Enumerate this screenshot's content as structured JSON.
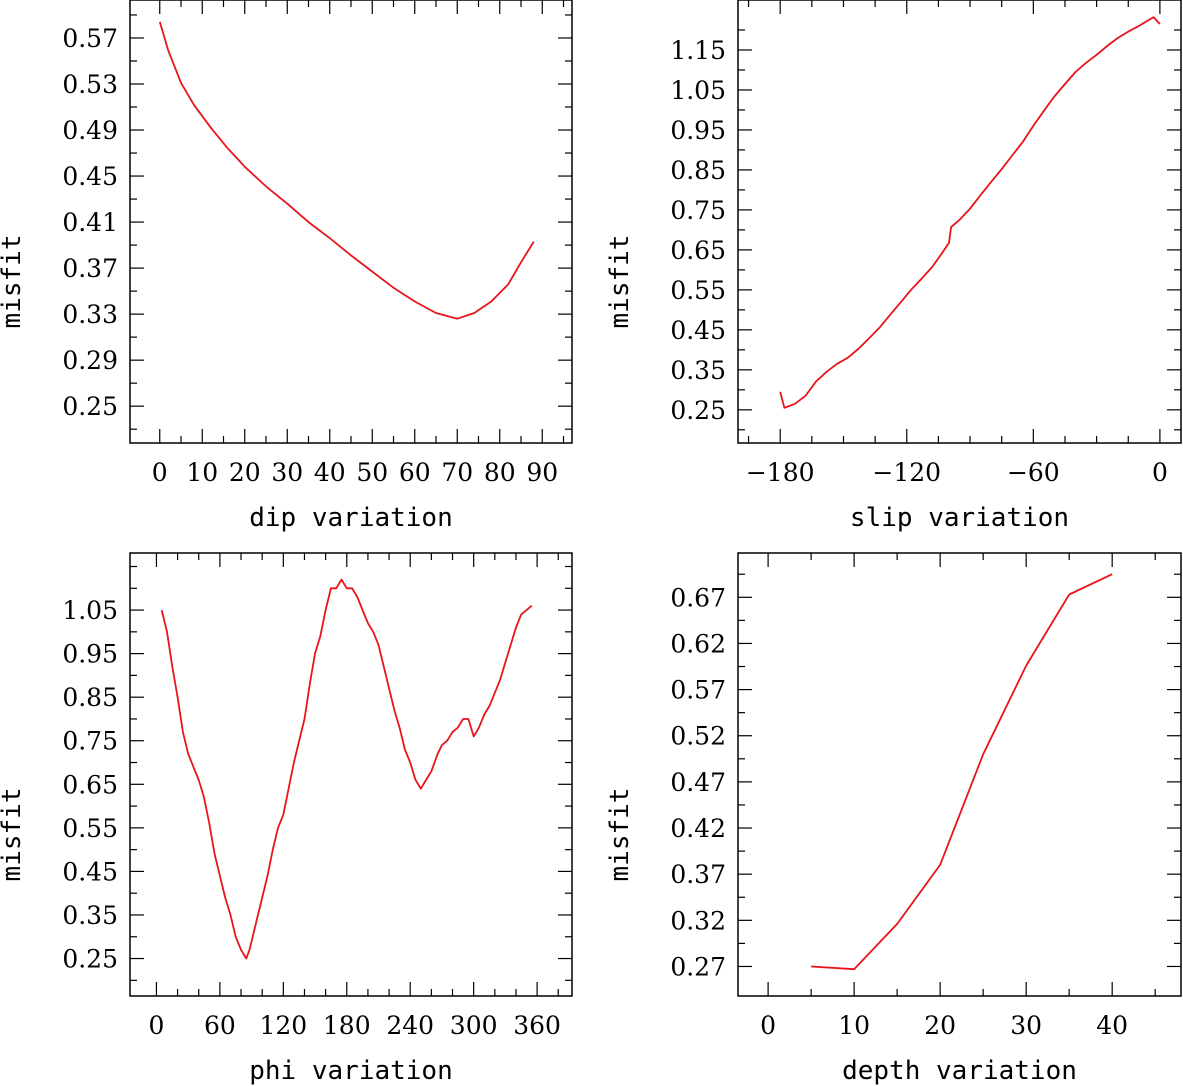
{
  "colors": {
    "curve": "#e8141a",
    "axes": "#000000",
    "background": "#ffffff"
  },
  "chart_data": [
    {
      "type": "line",
      "id": "dip",
      "xlabel": "dip    variation",
      "ylabel": "misfit",
      "xlim": [
        -7,
        97
      ],
      "ylim": [
        0.218,
        0.603
      ],
      "xticks": [
        0,
        10,
        20,
        30,
        40,
        50,
        60,
        70,
        80,
        90
      ],
      "xtick_labels": [
        "0",
        "10",
        "20",
        "30",
        "40",
        "50",
        "60",
        "70",
        "80",
        "90"
      ],
      "xminor": [
        5,
        15,
        25,
        35,
        45,
        55,
        65,
        75,
        85,
        95
      ],
      "yticks": [
        0.25,
        0.29,
        0.33,
        0.37,
        0.41,
        0.45,
        0.49,
        0.53,
        0.57
      ],
      "ytick_labels": [
        "0.25",
        "0.29",
        "0.33",
        "0.37",
        "0.41",
        "0.45",
        "0.49",
        "0.53",
        "0.57"
      ],
      "yminor": [
        0.23,
        0.27,
        0.31,
        0.35,
        0.39,
        0.43,
        0.47,
        0.51,
        0.55,
        0.59
      ],
      "x": [
        0,
        2,
        5,
        8,
        12,
        16,
        20,
        25,
        30,
        35,
        40,
        45,
        50,
        55,
        60,
        65,
        70,
        74,
        78,
        82,
        85,
        88
      ],
      "y": [
        0.584,
        0.559,
        0.531,
        0.512,
        0.492,
        0.474,
        0.458,
        0.441,
        0.426,
        0.41,
        0.396,
        0.381,
        0.367,
        0.353,
        0.341,
        0.331,
        0.326,
        0.331,
        0.341,
        0.356,
        0.375,
        0.393
      ]
    },
    {
      "type": "line",
      "id": "slip",
      "xlabel": "slip   variation",
      "ylabel": "misfit",
      "xlim": [
        -200,
        10
      ],
      "ylim": [
        0.167,
        1.275
      ],
      "xticks": [
        -180,
        -120,
        -60,
        0
      ],
      "xtick_labels": [
        "−180",
        "−120",
        "−60",
        "0"
      ],
      "xminor": [
        -195,
        -165,
        -150,
        -135,
        -105,
        -90,
        -75,
        -45,
        -30,
        -15
      ],
      "yticks": [
        0.25,
        0.35,
        0.45,
        0.55,
        0.65,
        0.75,
        0.85,
        0.95,
        1.05,
        1.15
      ],
      "ytick_labels": [
        "0.25",
        "0.35",
        "0.45",
        "0.55",
        "0.65",
        "0.75",
        "0.85",
        "0.95",
        "1.05",
        "1.15"
      ],
      "yminor": [
        0.2,
        0.3,
        0.4,
        0.5,
        0.6,
        0.7,
        0.8,
        0.9,
        1.0,
        1.1,
        1.2
      ],
      "x": [
        -180,
        -178,
        -173,
        -168,
        -163,
        -158,
        -153,
        -148,
        -143,
        -138,
        -133,
        -128,
        -123,
        -118,
        -113,
        -108,
        -103,
        -100,
        -99,
        -95,
        -90,
        -85,
        -80,
        -75,
        -70,
        -65,
        -60,
        -55,
        -50,
        -45,
        -40,
        -35,
        -30,
        -25,
        -20,
        -15,
        -10,
        -5,
        -3,
        0
      ],
      "y": [
        0.295,
        0.255,
        0.265,
        0.285,
        0.321,
        0.345,
        0.365,
        0.38,
        0.402,
        0.428,
        0.455,
        0.487,
        0.518,
        0.55,
        0.578,
        0.607,
        0.644,
        0.668,
        0.707,
        0.725,
        0.753,
        0.787,
        0.82,
        0.852,
        0.886,
        0.92,
        0.96,
        0.998,
        1.034,
        1.065,
        1.095,
        1.118,
        1.138,
        1.16,
        1.18,
        1.196,
        1.21,
        1.226,
        1.232,
        1.215
      ]
    },
    {
      "type": "line",
      "id": "phi",
      "xlabel": "phi    variation",
      "ylabel": "misfit",
      "xlim": [
        -25,
        393
      ],
      "ylim": [
        0.164,
        1.181
      ],
      "xticks": [
        0,
        60,
        120,
        180,
        240,
        300,
        360
      ],
      "xtick_labels": [
        "0",
        "60",
        "120",
        "180",
        "240",
        "300",
        "360"
      ],
      "xminor": [
        20,
        40,
        80,
        100,
        140,
        160,
        200,
        220,
        260,
        280,
        320,
        340,
        380
      ],
      "yticks": [
        0.25,
        0.35,
        0.45,
        0.55,
        0.65,
        0.75,
        0.85,
        0.95,
        1.05
      ],
      "ytick_labels": [
        "0.25",
        "0.35",
        "0.45",
        "0.55",
        "0.65",
        "0.75",
        "0.85",
        "0.95",
        "1.05"
      ],
      "yminor": [
        0.2,
        0.3,
        0.4,
        0.5,
        0.6,
        0.7,
        0.8,
        0.9,
        1.0,
        1.1,
        1.15
      ],
      "x": [
        5,
        10,
        15,
        20,
        25,
        30,
        35,
        40,
        45,
        50,
        55,
        60,
        65,
        70,
        75,
        80,
        85,
        88,
        91,
        95,
        100,
        105,
        110,
        115,
        120,
        125,
        130,
        135,
        140,
        145,
        150,
        155,
        160,
        165,
        170,
        175,
        180,
        185,
        190,
        195,
        200,
        205,
        210,
        215,
        220,
        225,
        230,
        235,
        240,
        245,
        250,
        255,
        260,
        263,
        266,
        270,
        275,
        280,
        285,
        290,
        295,
        300,
        305,
        310,
        315,
        320,
        325,
        330,
        335,
        340,
        345,
        350,
        355
      ],
      "y": [
        1.05,
        1.0,
        0.92,
        0.85,
        0.77,
        0.72,
        0.69,
        0.66,
        0.62,
        0.56,
        0.49,
        0.44,
        0.39,
        0.35,
        0.3,
        0.27,
        0.25,
        0.27,
        0.3,
        0.34,
        0.39,
        0.44,
        0.5,
        0.55,
        0.58,
        0.64,
        0.7,
        0.75,
        0.8,
        0.88,
        0.95,
        0.99,
        1.05,
        1.1,
        1.1,
        1.12,
        1.1,
        1.1,
        1.08,
        1.05,
        1.02,
        1.0,
        0.97,
        0.92,
        0.87,
        0.82,
        0.78,
        0.73,
        0.7,
        0.66,
        0.64,
        0.66,
        0.68,
        0.7,
        0.72,
        0.74,
        0.75,
        0.77,
        0.78,
        0.8,
        0.8,
        0.76,
        0.78,
        0.81,
        0.83,
        0.86,
        0.89,
        0.93,
        0.97,
        1.01,
        1.04,
        1.05,
        1.06
      ]
    },
    {
      "type": "line",
      "id": "depth",
      "xlabel": "depth  variation",
      "ylabel": "misfit",
      "xlim": [
        -3.5,
        48
      ],
      "ylim": [
        0.238,
        0.718
      ],
      "xticks": [
        0,
        10,
        20,
        30,
        40
      ],
      "xtick_labels": [
        "0",
        "10",
        "20",
        "30",
        "40"
      ],
      "xminor": [
        5,
        15,
        25,
        35,
        45
      ],
      "yticks": [
        0.27,
        0.32,
        0.37,
        0.42,
        0.47,
        0.52,
        0.57,
        0.62,
        0.67
      ],
      "ytick_labels": [
        "0.27",
        "0.32",
        "0.37",
        "0.42",
        "0.47",
        "0.52",
        "0.57",
        "0.62",
        "0.67"
      ],
      "yminor": [
        0.295,
        0.345,
        0.395,
        0.445,
        0.495,
        0.545,
        0.595,
        0.645,
        0.695
      ],
      "x": [
        5,
        10,
        15,
        20,
        25,
        30,
        35,
        40
      ],
      "y": [
        0.27,
        0.267,
        0.316,
        0.38,
        0.5,
        0.596,
        0.673,
        0.695
      ]
    }
  ]
}
